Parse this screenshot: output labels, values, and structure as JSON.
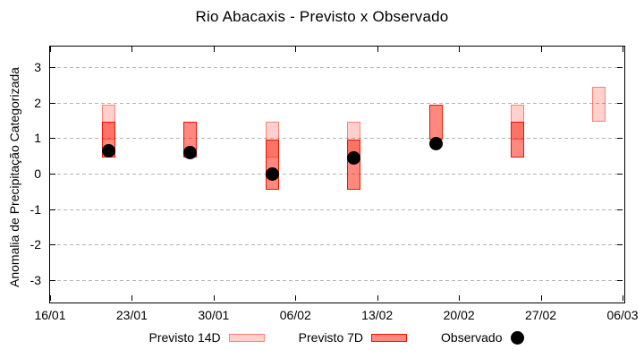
{
  "title": "Rio Abacaxis - Previsto x Observado",
  "chart_data": {
    "type": "bar",
    "subtype": "forecast-range-boxes-with-observed-points",
    "title": "Rio Abacaxis - Previsto x Observado",
    "xlabel": "",
    "ylabel": "Anomalia de Precipitação Categorizada",
    "ylim": [
      -3.6,
      3.6
    ],
    "yticks": [
      "3",
      "2",
      "1",
      "0",
      "-1",
      "-2",
      "-3"
    ],
    "ytick_values": [
      3,
      2,
      1,
      0,
      -1,
      -2,
      -3
    ],
    "xtick_labels": [
      "16/01",
      "23/01",
      "30/01",
      "06/02",
      "13/02",
      "20/02",
      "27/02",
      "06/03"
    ],
    "x_axis_days_total": 49,
    "x_tick_interval_days": 7,
    "grid": "horizontal-dashed",
    "legend_position": "below-plot",
    "legend": [
      {
        "label": "Previsto 14D",
        "swatch": "light-red-box"
      },
      {
        "label": "Previsto 7D",
        "swatch": "red-box"
      },
      {
        "label": "Observado",
        "swatch": "black-dot"
      }
    ],
    "series": [
      {
        "date": "21/01",
        "day": 5,
        "previsto_14d": [
          0.95,
          1.95
        ],
        "previsto_7d": [
          0.45,
          1.45
        ],
        "observado": 0.65
      },
      {
        "date": "28/01",
        "day": 12,
        "previsto_14d": null,
        "previsto_7d": [
          0.45,
          1.45
        ],
        "observado": 0.6
      },
      {
        "date": "04/02",
        "day": 19,
        "previsto_14d": [
          0.45,
          1.45
        ],
        "previsto_7d": [
          -0.45,
          0.95
        ],
        "observado": 0.0
      },
      {
        "date": "11/02",
        "day": 26,
        "previsto_14d": [
          0.45,
          1.45
        ],
        "previsto_7d": [
          -0.45,
          0.95
        ],
        "observado": 0.45
      },
      {
        "date": "18/02",
        "day": 33,
        "previsto_14d": null,
        "previsto_7d": [
          0.95,
          1.95
        ],
        "observado": 0.85
      },
      {
        "date": "25/02",
        "day": 40,
        "previsto_14d": [
          0.95,
          1.95
        ],
        "previsto_7d": [
          0.45,
          1.45
        ],
        "observado": null
      },
      {
        "date": "04/03",
        "day": 47,
        "previsto_14d": [
          1.45,
          2.45
        ],
        "previsto_7d": null,
        "observado": null
      }
    ],
    "colors": {
      "forecast_14d_fill": "#fbccc5",
      "forecast_14d_border": "#f09486",
      "forecast_7d_fill": "#f8796c",
      "forecast_7d_border": "#ee1500",
      "observed": "#000000",
      "grid": "#b4b4b4",
      "axis": "#000000",
      "background": "#ffffff"
    }
  }
}
